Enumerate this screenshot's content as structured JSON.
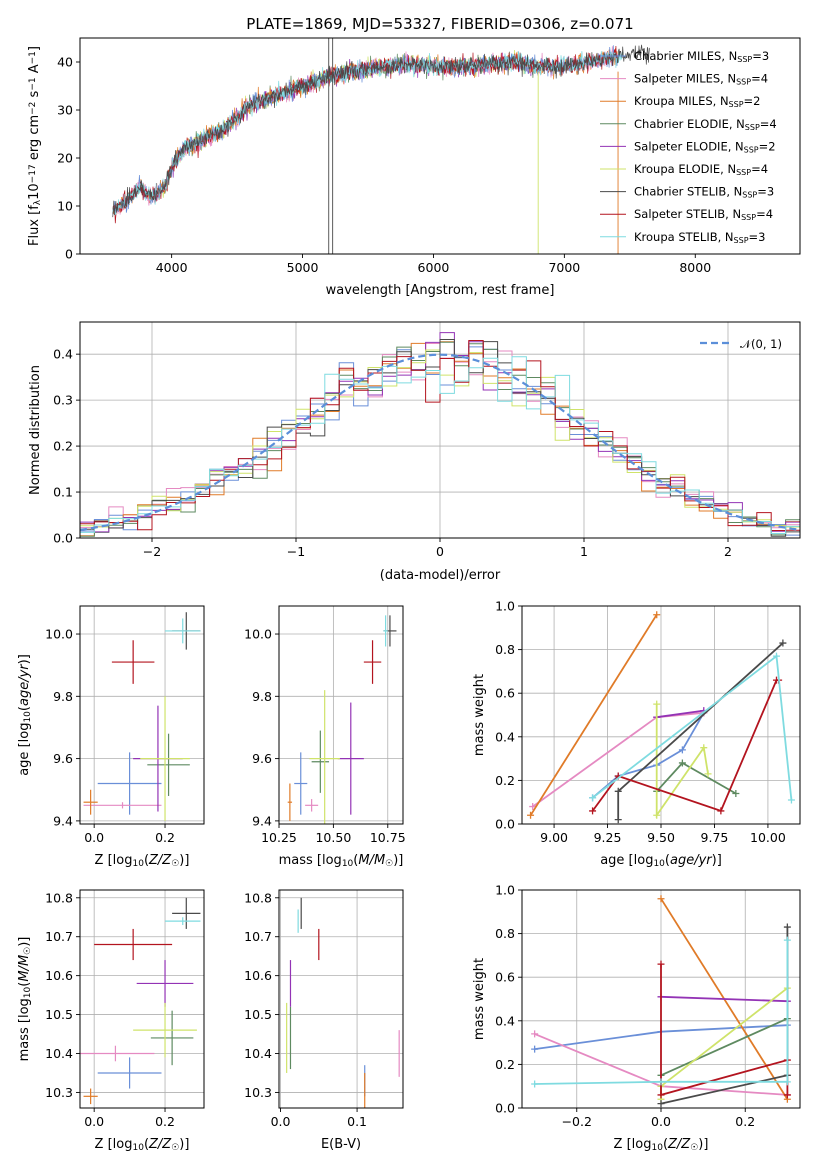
{
  "figure": {
    "title": "PLATE=1869, MJD=53327, FIBERID=0306, z=0.071"
  },
  "colors": {
    "chabrier_miles": "#6a8fd8",
    "salpeter_miles": "#e58ac2",
    "kroupa_miles": "#e07b28",
    "chabrier_elodie": "#5e8a60",
    "salpeter_elodie": "#9333b5",
    "kroupa_elodie": "#cfe36a",
    "chabrier_stelib": "#4a4a4a",
    "salpeter_stelib": "#b3141f",
    "kroupa_stelib": "#7fdbe0",
    "normal": "#5b8fd9"
  },
  "legend_spectrum": {
    "items": [
      {
        "name": "Chabrier MILES",
        "nssp": "3",
        "color_key": "chabrier_miles"
      },
      {
        "name": "Salpeter MILES",
        "nssp": "4",
        "color_key": "salpeter_miles"
      },
      {
        "name": "Kroupa MILES",
        "nssp": "2",
        "color_key": "kroupa_miles"
      },
      {
        "name": "Chabrier ELODIE",
        "nssp": "4",
        "color_key": "chabrier_elodie"
      },
      {
        "name": "Salpeter ELODIE",
        "nssp": "2",
        "color_key": "salpeter_elodie"
      },
      {
        "name": "Kroupa ELODIE",
        "nssp": "4",
        "color_key": "kroupa_elodie"
      },
      {
        "name": "Chabrier STELIB",
        "nssp": "3",
        "color_key": "chabrier_stelib"
      },
      {
        "name": "Salpeter STELIB",
        "nssp": "4",
        "color_key": "salpeter_stelib"
      },
      {
        "name": "Kroupa STELIB",
        "nssp": "3",
        "color_key": "kroupa_stelib"
      }
    ],
    "nssp_label": "N",
    "nssp_sub": "SSP",
    "placement": "top-right"
  },
  "legend_hist": {
    "label": "𝒩(0, 1)",
    "placement": "top-right"
  },
  "chart_data": [
    {
      "id": "spectrum",
      "type": "line",
      "xlabel": "wavelength [Angstrom, rest frame]",
      "ylabel_parts": [
        "Flux [f",
        "λ",
        "10",
        "−17",
        " erg cm",
        "−2",
        " s",
        "−1",
        " A",
        "−1",
        "]"
      ],
      "xlim": [
        3300,
        8800
      ],
      "ylim": [
        0,
        45
      ],
      "xticks": [
        4000,
        5000,
        6000,
        7000,
        8000
      ],
      "yticks": [
        0,
        10,
        20,
        30,
        40
      ],
      "grid": false,
      "continuum_anchors": {
        "x": [
          3550,
          3650,
          3750,
          3850,
          3950,
          4000,
          4100,
          4250,
          4400,
          4600,
          4800,
          5000,
          5200,
          5400,
          5600,
          5800,
          6000,
          6200,
          6400,
          6600,
          6800,
          7000,
          7200,
          7400,
          7600
        ],
        "y": [
          9,
          11,
          14,
          12,
          14,
          18,
          22,
          24,
          26,
          31,
          33,
          35,
          37,
          38,
          39,
          39.5,
          39,
          39,
          39.5,
          40,
          39,
          39,
          40,
          41,
          42
        ]
      },
      "model_ranges": [
        {
          "key": "chabrier_miles",
          "x": [
            3550,
            7410
          ]
        },
        {
          "key": "salpeter_miles",
          "x": [
            3550,
            7410
          ]
        },
        {
          "key": "kroupa_miles",
          "x": [
            3550,
            7410
          ]
        },
        {
          "key": "chabrier_elodie",
          "x": [
            3900,
            6800
          ]
        },
        {
          "key": "salpeter_elodie",
          "x": [
            3900,
            6800
          ]
        },
        {
          "key": "kroupa_elodie",
          "x": [
            3900,
            6800
          ]
        },
        {
          "key": "chabrier_stelib",
          "x": [
            3550,
            7650
          ]
        },
        {
          "key": "salpeter_stelib",
          "x": [
            3550,
            7400
          ]
        },
        {
          "key": "kroupa_stelib",
          "x": [
            3550,
            7450
          ]
        }
      ],
      "spikes": [
        {
          "x": 5200,
          "ymin": 0,
          "ymax": 45,
          "key": "chabrier_stelib"
        },
        {
          "x": 5230,
          "ymin": 0,
          "ymax": 45,
          "key": "chabrier_stelib"
        },
        {
          "x": 6800,
          "ymin": 0,
          "ymax": 38,
          "key": "kroupa_elodie"
        },
        {
          "x": 7410,
          "ymin": 0,
          "ymax": 38,
          "key": "kroupa_miles"
        }
      ]
    },
    {
      "id": "residual_hist",
      "type": "line",
      "xlabel": "(data-model)/error",
      "ylabel": "Normed distribution",
      "xlim": [
        -2.5,
        2.5
      ],
      "ylim": [
        0,
        0.47
      ],
      "xticks": [
        -2,
        -1,
        0,
        1,
        2
      ],
      "yticks": [
        0.0,
        0.1,
        0.2,
        0.3,
        0.4
      ],
      "grid": true,
      "bin_width": 0.1,
      "bin_start": -2.5,
      "normal": {
        "mean": 0,
        "sigma": 1
      }
    },
    {
      "id": "age_vs_Z",
      "type": "scatter",
      "xlabel_parts": [
        "Z [log",
        "10",
        "(",
        "Z/Z",
        "☉",
        ")]"
      ],
      "ylabel_parts": [
        "age  [log",
        "10",
        "(",
        "age/yr",
        ")]"
      ],
      "xlim": [
        -0.04,
        0.31
      ],
      "ylim": [
        9.39,
        10.09
      ],
      "xticks": [
        0.0,
        0.2
      ],
      "yticks": [
        9.4,
        9.6,
        9.8,
        10.0
      ],
      "grid": true,
      "points": [
        {
          "key": "chabrier_miles",
          "x": 0.1,
          "y": 9.52,
          "xerr": 0.09,
          "yerr": 0.1
        },
        {
          "key": "salpeter_miles",
          "x": 0.08,
          "y": 9.45,
          "xerr": 0.11,
          "yerr": 0.01
        },
        {
          "key": "kroupa_miles",
          "x": -0.01,
          "y": 9.46,
          "xerr": 0.02,
          "yerr": 0.04
        },
        {
          "key": "chabrier_elodie",
          "x": 0.21,
          "y": 9.58,
          "xerr": 0.06,
          "yerr": 0.1
        },
        {
          "key": "salpeter_elodie",
          "x": 0.18,
          "y": 9.6,
          "xerr": 0.07,
          "yerr": 0.17
        },
        {
          "key": "kroupa_elodie",
          "x": 0.2,
          "y": 9.6,
          "xerr": 0.07,
          "yerr": 0.2
        },
        {
          "key": "chabrier_stelib",
          "x": 0.26,
          "y": 10.01,
          "xerr": 0.04,
          "yerr": 0.06
        },
        {
          "key": "salpeter_stelib",
          "x": 0.11,
          "y": 9.91,
          "xerr": 0.06,
          "yerr": 0.07
        },
        {
          "key": "kroupa_stelib",
          "x": 0.25,
          "y": 10.01,
          "xerr": 0.05,
          "yerr": 0.04
        }
      ]
    },
    {
      "id": "age_vs_mass",
      "type": "scatter",
      "xlabel_parts": [
        "mass [log",
        "10",
        "(",
        "M/M",
        "☉",
        ")]"
      ],
      "ylabel_parts": [],
      "xlim": [
        10.25,
        10.82
      ],
      "ylim": [
        9.39,
        10.09
      ],
      "xticks": [
        10.25,
        10.5,
        10.75
      ],
      "yticks": [
        9.4,
        9.6,
        9.8,
        10.0
      ],
      "grid": true,
      "points": [
        {
          "key": "chabrier_miles",
          "x": 10.35,
          "y": 9.52,
          "xerr": 0.03,
          "yerr": 0.1
        },
        {
          "key": "salpeter_miles",
          "x": 10.4,
          "y": 9.45,
          "xerr": 0.03,
          "yerr": 0.02
        },
        {
          "key": "kroupa_miles",
          "x": 10.3,
          "y": 9.46,
          "xerr": 0.01,
          "yerr": 0.06
        },
        {
          "key": "chabrier_elodie",
          "x": 10.44,
          "y": 9.59,
          "xerr": 0.04,
          "yerr": 0.1
        },
        {
          "key": "salpeter_elodie",
          "x": 10.58,
          "y": 9.6,
          "xerr": 0.06,
          "yerr": 0.18
        },
        {
          "key": "kroupa_elodie",
          "x": 10.46,
          "y": 9.6,
          "xerr": 0.07,
          "yerr": 0.22
        },
        {
          "key": "chabrier_stelib",
          "x": 10.76,
          "y": 10.01,
          "xerr": 0.03,
          "yerr": 0.05
        },
        {
          "key": "salpeter_stelib",
          "x": 10.68,
          "y": 9.91,
          "xerr": 0.04,
          "yerr": 0.07
        },
        {
          "key": "kroupa_stelib",
          "x": 10.74,
          "y": 10.01,
          "xerr": 0.01,
          "yerr": 0.05
        }
      ]
    },
    {
      "id": "weight_vs_age",
      "type": "line",
      "xlabel_parts": [
        "age  [log",
        "10",
        "(",
        "age/yr",
        ")]"
      ],
      "ylabel": "mass weight",
      "xlim": [
        8.85,
        10.15
      ],
      "ylim": [
        0,
        1.0
      ],
      "xticks": [
        9.0,
        9.25,
        9.5,
        9.75,
        10.0
      ],
      "yticks": [
        0.0,
        0.2,
        0.4,
        0.6,
        0.8,
        1.0
      ],
      "grid": true,
      "series": [
        {
          "key": "chabrier_miles",
          "x": [
            9.18,
            9.3,
            9.48,
            9.6,
            9.7
          ],
          "y": [
            0.12,
            0.22,
            0.27,
            0.34,
            0.51
          ]
        },
        {
          "key": "salpeter_miles",
          "x": [
            8.9,
            9.48,
            9.7
          ],
          "y": [
            0.08,
            0.49,
            0.51
          ]
        },
        {
          "key": "kroupa_miles",
          "x": [
            8.89,
            9.48
          ],
          "y": [
            0.04,
            0.96
          ]
        },
        {
          "key": "chabrier_elodie",
          "x": [
            9.48,
            9.6,
            9.85
          ],
          "y": [
            0.15,
            0.28,
            0.14
          ]
        },
        {
          "key": "salpeter_elodie",
          "x": [
            9.48,
            9.7
          ],
          "y": [
            0.49,
            0.52
          ]
        },
        {
          "key": "kroupa_elodie",
          "x": [
            9.48,
            9.48,
            9.7,
            9.72
          ],
          "y": [
            0.55,
            0.04,
            0.35,
            0.23
          ]
        },
        {
          "key": "chabrier_stelib",
          "x": [
            9.3,
            9.3,
            10.07
          ],
          "y": [
            0.02,
            0.15,
            0.83
          ]
        },
        {
          "key": "salpeter_stelib",
          "x": [
            9.18,
            9.3,
            9.78,
            10.04,
            10.05
          ],
          "y": [
            0.06,
            0.22,
            0.06,
            0.66,
            0.66
          ]
        },
        {
          "key": "kroupa_stelib",
          "x": [
            9.18,
            10.04,
            10.11
          ],
          "y": [
            0.12,
            0.77,
            0.11
          ]
        }
      ]
    },
    {
      "id": "mass_vs_Z",
      "type": "scatter",
      "xlabel_parts": [
        "Z [log",
        "10",
        "(",
        "Z/Z",
        "☉",
        ")]"
      ],
      "ylabel_parts": [
        "mass [log",
        "10",
        "(",
        "M/M",
        "☉",
        ")]"
      ],
      "xlim": [
        -0.04,
        0.31
      ],
      "ylim": [
        10.26,
        10.82
      ],
      "xticks": [
        0.0,
        0.2
      ],
      "yticks": [
        10.3,
        10.4,
        10.5,
        10.6,
        10.7,
        10.8
      ],
      "grid": true,
      "points": [
        {
          "key": "chabrier_miles",
          "x": 0.1,
          "y": 10.35,
          "xerr": 0.09,
          "yerr": 0.04
        },
        {
          "key": "salpeter_miles",
          "x": 0.06,
          "y": 10.4,
          "xerr": 0.11,
          "yerr": 0.02
        },
        {
          "key": "kroupa_miles",
          "x": -0.01,
          "y": 10.29,
          "xerr": 0.02,
          "yerr": 0.02
        },
        {
          "key": "chabrier_elodie",
          "x": 0.22,
          "y": 10.44,
          "xerr": 0.06,
          "yerr": 0.07
        },
        {
          "key": "salpeter_elodie",
          "x": 0.2,
          "y": 10.58,
          "xerr": 0.08,
          "yerr": 0.06
        },
        {
          "key": "kroupa_elodie",
          "x": 0.2,
          "y": 10.46,
          "xerr": 0.09,
          "yerr": 0.07
        },
        {
          "key": "chabrier_stelib",
          "x": 0.26,
          "y": 10.76,
          "xerr": 0.04,
          "yerr": 0.04
        },
        {
          "key": "salpeter_stelib",
          "x": 0.11,
          "y": 10.68,
          "xerr": 0.11,
          "yerr": 0.04
        },
        {
          "key": "kroupa_stelib",
          "x": 0.25,
          "y": 10.74,
          "xerr": 0.05,
          "yerr": 0.01
        }
      ]
    },
    {
      "id": "mass_vs_ebv",
      "type": "scatter",
      "xlabel": "E(B-V)",
      "xlim": [
        -0.002,
        0.16
      ],
      "ylim": [
        10.26,
        10.82
      ],
      "xticks": [
        0.0,
        0.1
      ],
      "yticks": [
        10.3,
        10.4,
        10.5,
        10.6,
        10.7,
        10.8
      ],
      "grid": true,
      "points": [
        {
          "key": "chabrier_miles",
          "x": 0.11,
          "y": 10.33,
          "xerr": 0.0,
          "yerr": 0.04
        },
        {
          "key": "salpeter_miles",
          "x": 0.155,
          "y": 10.4,
          "xerr": 0.0,
          "yerr": 0.06
        },
        {
          "key": "kroupa_miles",
          "x": 0.11,
          "y": 10.3,
          "xerr": 0.0,
          "yerr": 0.05
        },
        {
          "key": "chabrier_elodie",
          "x": 0.013,
          "y": 10.44,
          "xerr": 0.0,
          "yerr": 0.08
        },
        {
          "key": "salpeter_elodie",
          "x": 0.013,
          "y": 10.58,
          "xerr": 0.0,
          "yerr": 0.06
        },
        {
          "key": "kroupa_elodie",
          "x": 0.008,
          "y": 10.44,
          "xerr": 0.0,
          "yerr": 0.09
        },
        {
          "key": "chabrier_stelib",
          "x": 0.027,
          "y": 10.76,
          "xerr": 0.0,
          "yerr": 0.04
        },
        {
          "key": "salpeter_stelib",
          "x": 0.05,
          "y": 10.68,
          "xerr": 0.0,
          "yerr": 0.04
        },
        {
          "key": "kroupa_stelib",
          "x": 0.023,
          "y": 10.74,
          "xerr": 0.0,
          "yerr": 0.03
        }
      ]
    },
    {
      "id": "weight_vs_Z",
      "type": "line",
      "xlabel_parts": [
        "Z [log",
        "10",
        "(",
        "Z/Z",
        "☉",
        ")]"
      ],
      "ylabel": "mass weight",
      "xlim": [
        -0.33,
        0.33
      ],
      "ylim": [
        0,
        1.0
      ],
      "xticks": [
        -0.2,
        0.0,
        0.2
      ],
      "yticks": [
        0.0,
        0.2,
        0.4,
        0.6,
        0.8,
        1.0
      ],
      "grid": true,
      "series": [
        {
          "key": "chabrier_miles",
          "x": [
            -0.3,
            0.0,
            0.3
          ],
          "y": [
            0.27,
            0.35,
            0.38
          ]
        },
        {
          "key": "salpeter_miles",
          "x": [
            -0.3,
            0.0,
            0.3
          ],
          "y": [
            0.34,
            0.1,
            0.06
          ]
        },
        {
          "key": "kroupa_miles",
          "x": [
            0.0,
            0.3
          ],
          "y": [
            0.96,
            0.04
          ]
        },
        {
          "key": "chabrier_elodie",
          "x": [
            0.0,
            0.3
          ],
          "y": [
            0.15,
            0.41
          ]
        },
        {
          "key": "salpeter_elodie",
          "x": [
            0.0,
            0.3
          ],
          "y": [
            0.51,
            0.49
          ]
        },
        {
          "key": "kroupa_elodie",
          "x": [
            0.0,
            0.0,
            0.3
          ],
          "y": [
            0.04,
            0.1,
            0.55
          ]
        },
        {
          "key": "chabrier_stelib",
          "x": [
            0.0,
            0.3,
            0.3
          ],
          "y": [
            0.02,
            0.15,
            0.83
          ]
        },
        {
          "key": "salpeter_stelib",
          "x": [
            0.0,
            0.0,
            0.3,
            0.3
          ],
          "y": [
            0.66,
            0.06,
            0.22,
            0.06
          ]
        },
        {
          "key": "kroupa_stelib",
          "x": [
            -0.3,
            0.0,
            0.3,
            0.3
          ],
          "y": [
            0.11,
            0.12,
            0.12,
            0.77
          ]
        }
      ]
    }
  ]
}
